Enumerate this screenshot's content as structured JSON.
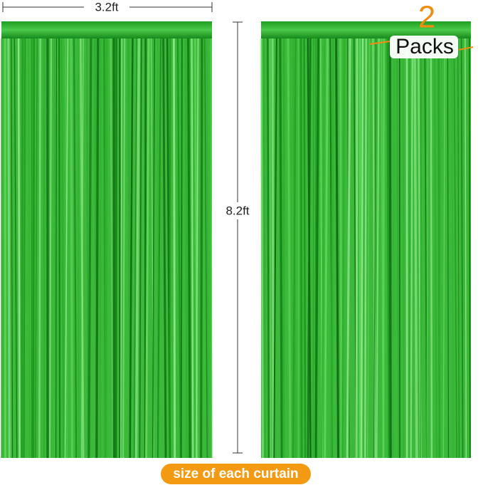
{
  "dimensions": {
    "width": "3.2ft",
    "height": "8.2ft"
  },
  "badge": {
    "count": "2",
    "label": "Packs"
  },
  "caption": "size of each curtain"
}
